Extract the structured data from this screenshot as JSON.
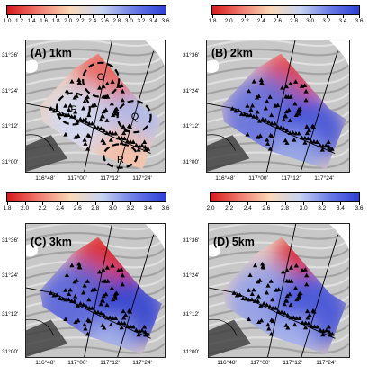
{
  "colorbars": [
    {
      "ticks": [
        "1.0",
        "1.2",
        "1.4",
        "1.6",
        "1.8",
        "2.0",
        "2.2",
        "2.4",
        "2.6",
        "2.8",
        "3.0",
        "3.2",
        "3.4",
        "3.6"
      ],
      "range": [
        1.0,
        3.6
      ]
    },
    {
      "ticks": [
        "1.8",
        "2.0",
        "2.2",
        "2.4",
        "2.6",
        "2.8",
        "3.0",
        "3.2",
        "3.4",
        "3.6"
      ],
      "range": [
        1.8,
        3.6
      ]
    },
    {
      "ticks": [
        "1.8",
        "2.0",
        "2.2",
        "2.4",
        "2.6",
        "2.8",
        "3.0",
        "3.2",
        "3.4",
        "3.6"
      ],
      "range": [
        1.8,
        3.6
      ]
    },
    {
      "ticks": [
        "2.0",
        "2.2",
        "2.4",
        "2.6",
        "2.8",
        "3.0",
        "3.2",
        "3.4",
        "3.6"
      ],
      "range": [
        2.0,
        3.6
      ]
    }
  ],
  "colormap": [
    "#d7191c",
    "#f07c70",
    "#f9d9b9",
    "#c6d3f0",
    "#6b7ce6",
    "#2b3fd6"
  ],
  "panels": [
    {
      "title": "(A) 1km"
    },
    {
      "title": "(B) 2km"
    },
    {
      "title": "(C) 3km"
    },
    {
      "title": "(D) 5km"
    }
  ],
  "lat_ticks": [
    "31°36'",
    "31°24'",
    "31°12'",
    "31°00'"
  ],
  "lon_ticks": [
    "116°48'",
    "117°00'",
    "117°12'",
    "117°24'"
  ],
  "zones": [
    "O",
    "P",
    "Q",
    "R"
  ]
}
